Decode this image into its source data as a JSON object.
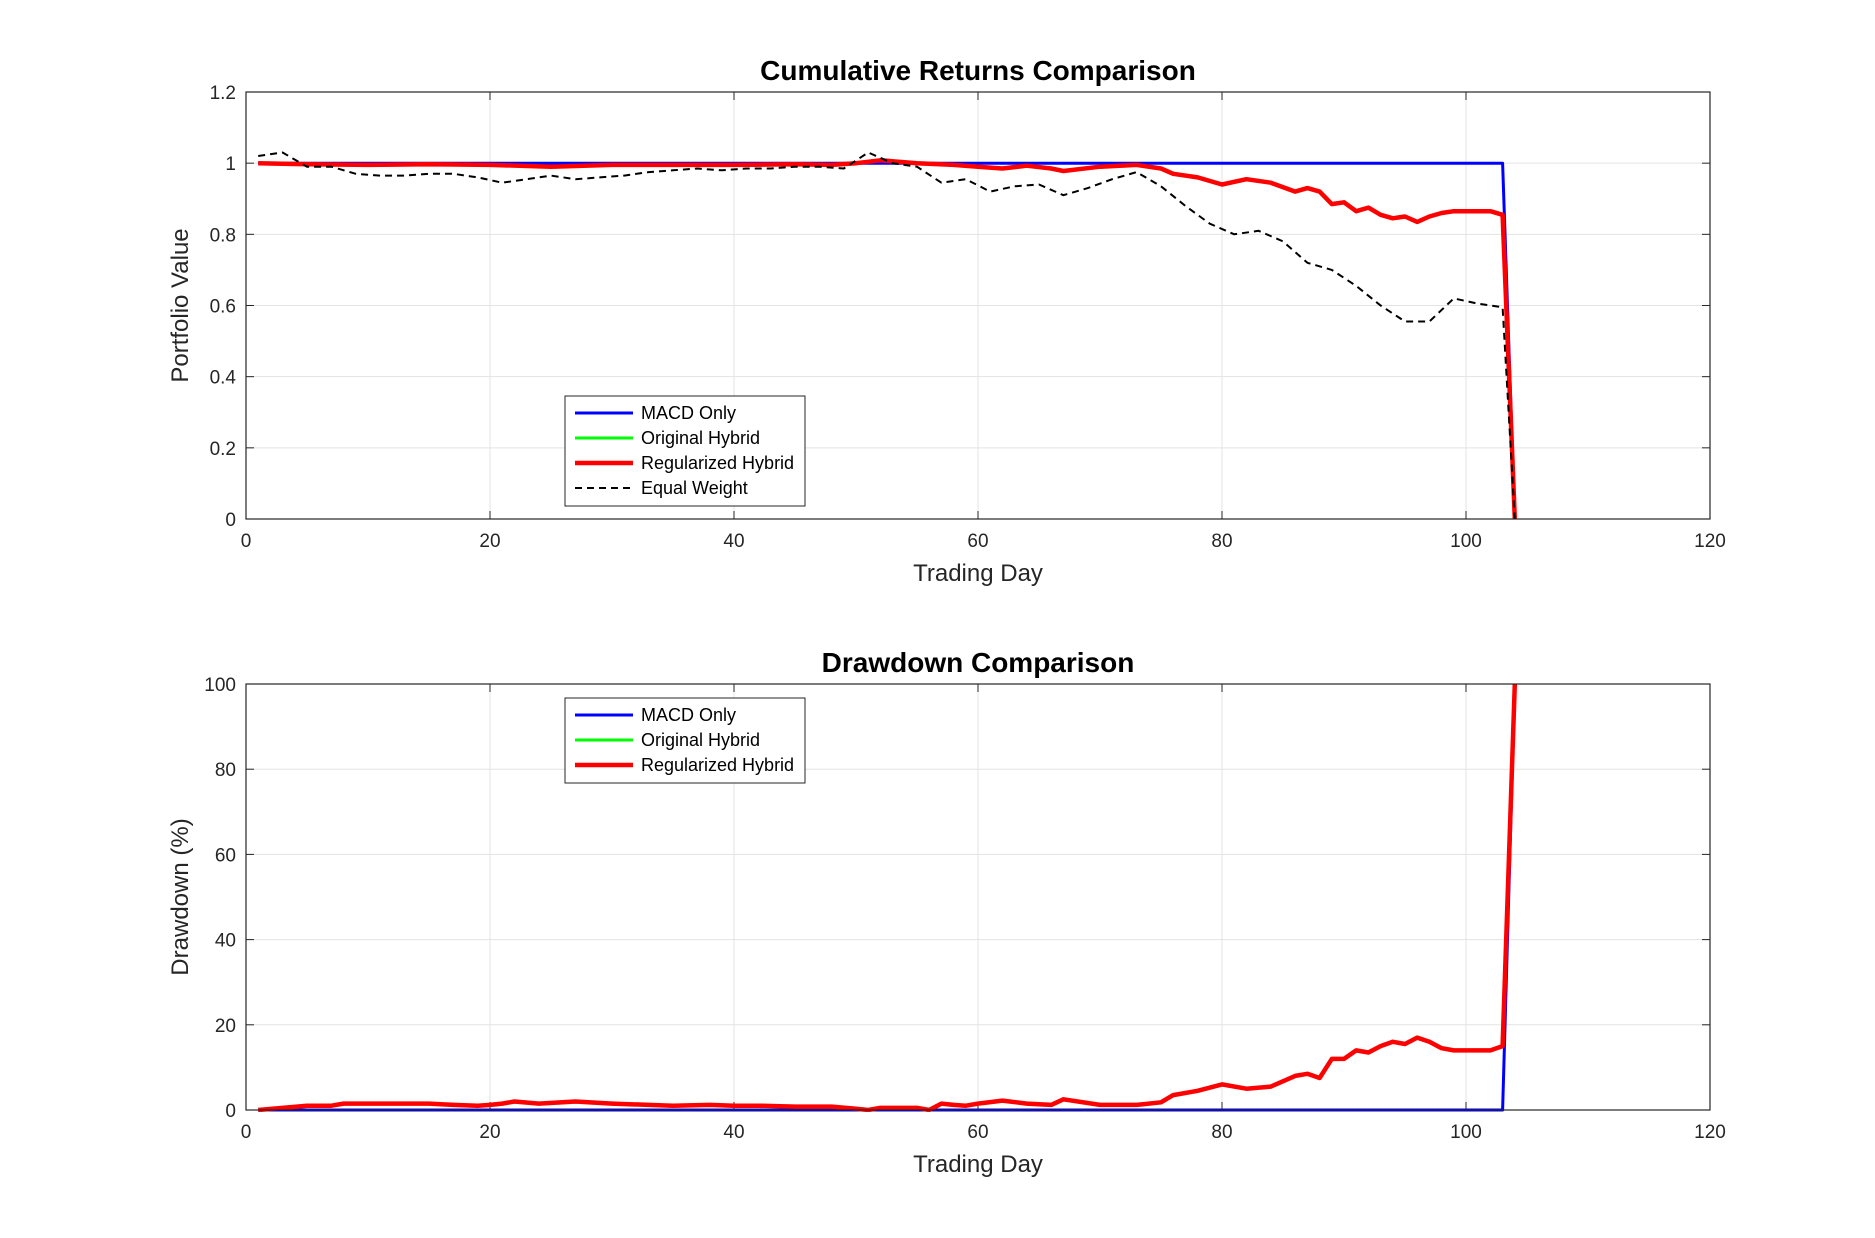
{
  "chart_data": [
    {
      "type": "line",
      "title": "Cumulative Returns Comparison",
      "xlabel": "Trading Day",
      "ylabel": "Portfolio Value",
      "xlim": [
        0,
        120
      ],
      "ylim": [
        0,
        1.2
      ],
      "xticks": [
        "0",
        "20",
        "40",
        "60",
        "80",
        "100",
        "120"
      ],
      "yticks": [
        "0",
        "0.2",
        "0.4",
        "0.6",
        "0.8",
        "1",
        "1.2"
      ],
      "grid": true,
      "legend_position": "lower-left",
      "series": [
        {
          "name": "MACD Only",
          "color": "#0000ff",
          "style": "solid",
          "x": [
            1,
            103,
            104
          ],
          "y": [
            1.0,
            1.0,
            0.0
          ]
        },
        {
          "name": "Original Hybrid",
          "color": "#00ff00",
          "style": "solid",
          "x": [],
          "y": []
        },
        {
          "name": "Regularized Hybrid",
          "color": "#ff0000",
          "style": "solid",
          "x": [
            1,
            5,
            10,
            15,
            20,
            25,
            30,
            35,
            40,
            45,
            48,
            50,
            52,
            55,
            58,
            60,
            62,
            64,
            66,
            67,
            70,
            73,
            75,
            76,
            78,
            80,
            82,
            84,
            86,
            87,
            88,
            89,
            90,
            91,
            92,
            93,
            94,
            95,
            96,
            97,
            98,
            99,
            100,
            101,
            102,
            103,
            104
          ],
          "y": [
            1.0,
            0.997,
            0.995,
            0.997,
            0.995,
            0.99,
            0.995,
            0.995,
            0.995,
            0.997,
            0.995,
            1.0,
            1.008,
            1.0,
            0.995,
            0.99,
            0.985,
            0.993,
            0.985,
            0.978,
            0.99,
            0.995,
            0.985,
            0.97,
            0.96,
            0.94,
            0.955,
            0.945,
            0.92,
            0.93,
            0.92,
            0.885,
            0.89,
            0.865,
            0.875,
            0.855,
            0.845,
            0.85,
            0.835,
            0.85,
            0.86,
            0.865,
            0.865,
            0.865,
            0.865,
            0.855,
            0.0
          ]
        },
        {
          "name": "Equal Weight",
          "color": "#000000",
          "style": "dashed",
          "x": [
            1,
            3,
            5,
            7,
            9,
            11,
            13,
            15,
            17,
            19,
            21,
            23,
            25,
            27,
            29,
            31,
            33,
            35,
            37,
            39,
            41,
            43,
            45,
            47,
            49,
            51,
            53,
            55,
            57,
            59,
            61,
            63,
            65,
            67,
            69,
            71,
            73,
            75,
            77,
            79,
            81,
            83,
            85,
            87,
            89,
            91,
            93,
            95,
            97,
            99,
            101,
            103,
            104
          ],
          "y": [
            1.02,
            1.03,
            0.99,
            0.99,
            0.97,
            0.965,
            0.965,
            0.97,
            0.97,
            0.96,
            0.945,
            0.955,
            0.965,
            0.955,
            0.96,
            0.965,
            0.975,
            0.98,
            0.985,
            0.98,
            0.985,
            0.985,
            0.99,
            0.99,
            0.985,
            1.03,
            1.0,
            0.99,
            0.945,
            0.955,
            0.92,
            0.935,
            0.94,
            0.91,
            0.93,
            0.955,
            0.975,
            0.935,
            0.88,
            0.83,
            0.8,
            0.81,
            0.78,
            0.72,
            0.7,
            0.655,
            0.6,
            0.555,
            0.555,
            0.62,
            0.605,
            0.595,
            0.0
          ]
        }
      ]
    },
    {
      "type": "line",
      "title": "Drawdown Comparison",
      "xlabel": "Trading Day",
      "ylabel": "Drawdown (%)",
      "xlim": [
        0,
        120
      ],
      "ylim": [
        0,
        100
      ],
      "xticks": [
        "0",
        "20",
        "40",
        "60",
        "80",
        "100",
        "120"
      ],
      "yticks": [
        "0",
        "20",
        "40",
        "60",
        "80",
        "100"
      ],
      "grid": true,
      "legend_position": "top-left",
      "series": [
        {
          "name": "MACD Only",
          "color": "#0000ff",
          "style": "solid",
          "x": [
            1,
            103,
            104
          ],
          "y": [
            0,
            0,
            100
          ]
        },
        {
          "name": "Original Hybrid",
          "color": "#00ff00",
          "style": "solid",
          "x": [],
          "y": []
        },
        {
          "name": "Regularized Hybrid",
          "color": "#ff0000",
          "style": "solid",
          "x": [
            1,
            3,
            5,
            7,
            8,
            10,
            12,
            15,
            17,
            19,
            20,
            21,
            22,
            24,
            27,
            30,
            33,
            35,
            38,
            40,
            42,
            45,
            48,
            50,
            51,
            52,
            55,
            56,
            57,
            58,
            59,
            60,
            62,
            64,
            66,
            67,
            70,
            73,
            75,
            76,
            78,
            80,
            82,
            84,
            86,
            87,
            88,
            89,
            90,
            91,
            92,
            93,
            94,
            95,
            96,
            97,
            98,
            99,
            100,
            101,
            102,
            103,
            104
          ],
          "y": [
            0.0,
            0.5,
            1.0,
            1.0,
            1.5,
            1.5,
            1.5,
            1.5,
            1.2,
            1.0,
            1.2,
            1.5,
            2.0,
            1.5,
            2.0,
            1.5,
            1.2,
            1.0,
            1.2,
            1.0,
            1.0,
            0.8,
            0.8,
            0.3,
            0.0,
            0.5,
            0.5,
            0.0,
            1.5,
            1.2,
            1.0,
            1.5,
            2.2,
            1.5,
            1.2,
            2.5,
            1.2,
            1.2,
            1.8,
            3.5,
            4.5,
            6.0,
            5.0,
            5.5,
            8.0,
            8.5,
            7.5,
            12.0,
            12.0,
            14.0,
            13.5,
            15.0,
            16.0,
            15.5,
            17.0,
            16.0,
            14.5,
            14.0,
            14.0,
            14.0,
            14.0,
            15.0,
            100.0
          ]
        }
      ]
    }
  ]
}
